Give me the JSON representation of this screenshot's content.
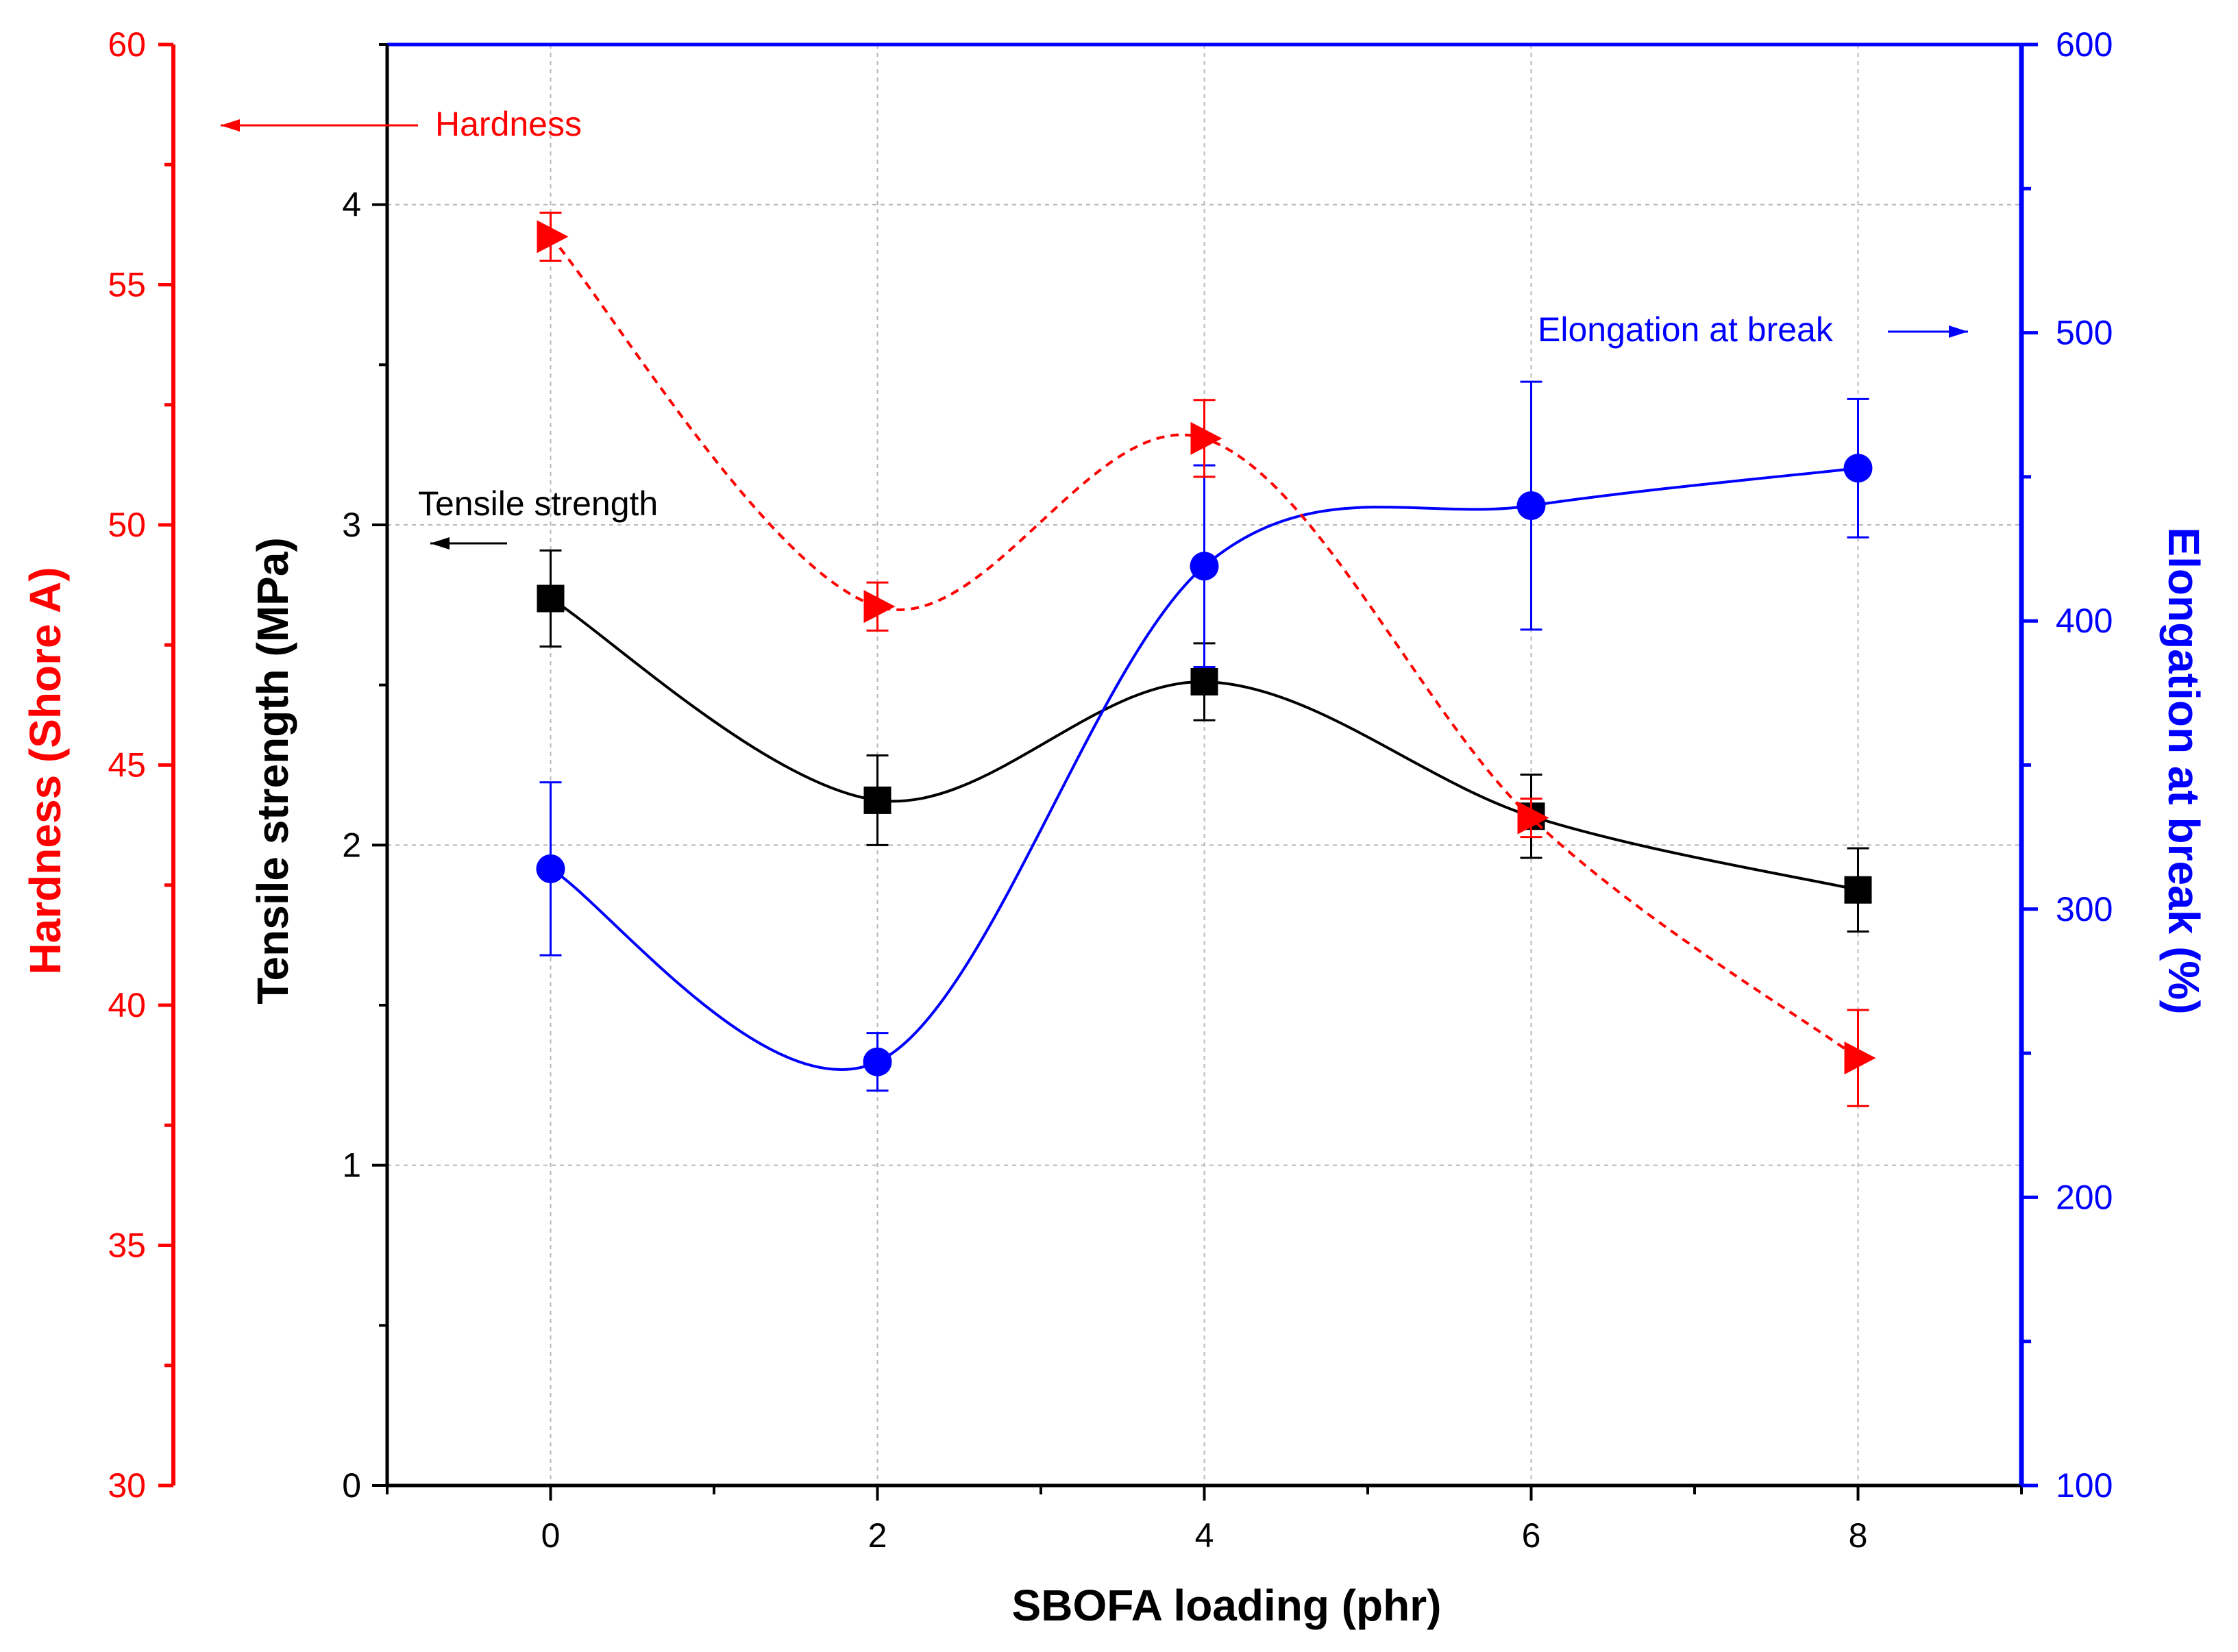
{
  "chart_data": {
    "type": "line",
    "x": [
      0,
      2,
      4,
      6,
      8
    ],
    "xlabel": "SBOFA loading (phr)",
    "xlim": [
      -1,
      9
    ],
    "xticks": [
      0,
      2,
      4,
      6,
      8
    ],
    "grid": true,
    "axes": {
      "tensile": {
        "label": "Tensile strength (MPa)",
        "ylim": [
          0,
          4.5
        ],
        "ticks": [
          0,
          1,
          2,
          3,
          4
        ],
        "color": "#000000"
      },
      "hardness": {
        "label": "Hardness (Shore A)",
        "ylim": [
          30,
          60
        ],
        "ticks": [
          30,
          35,
          40,
          45,
          50,
          55,
          60
        ],
        "color": "#ff0000"
      },
      "elongation": {
        "label": "Elongation at break (%)",
        "ylim": [
          100,
          600
        ],
        "ticks": [
          100,
          200,
          300,
          400,
          500,
          600
        ],
        "color": "#0000ff"
      }
    },
    "series": [
      {
        "name": "Tensile strength",
        "axis": "tensile",
        "values": [
          2.77,
          2.14,
          2.51,
          2.09,
          1.86
        ],
        "errors": [
          0.15,
          0.14,
          0.12,
          0.13,
          0.13
        ],
        "marker": "square",
        "line": "solid",
        "color": "#000000"
      },
      {
        "name": "Hardness",
        "axis": "hardness",
        "values": [
          56.0,
          48.3,
          51.8,
          43.9,
          38.9
        ],
        "errors": [
          0.5,
          0.5,
          0.8,
          0.4,
          1.0
        ],
        "marker": "triangle-right",
        "line": "dashed",
        "color": "#ff0000"
      },
      {
        "name": "Elongation at break",
        "axis": "elongation",
        "values": [
          314,
          247,
          419,
          440,
          453
        ],
        "errors": [
          30,
          10,
          35,
          43,
          24
        ],
        "marker": "circle",
        "line": "solid",
        "color": "#0000ff"
      }
    ],
    "annotations": [
      {
        "text": "Hardness",
        "arrow": "left",
        "color": "#ff0000"
      },
      {
        "text": "Tensile strength",
        "arrow": "left",
        "color": "#000000"
      },
      {
        "text": "Elongation at break",
        "arrow": "right",
        "color": "#0000ff"
      }
    ]
  }
}
